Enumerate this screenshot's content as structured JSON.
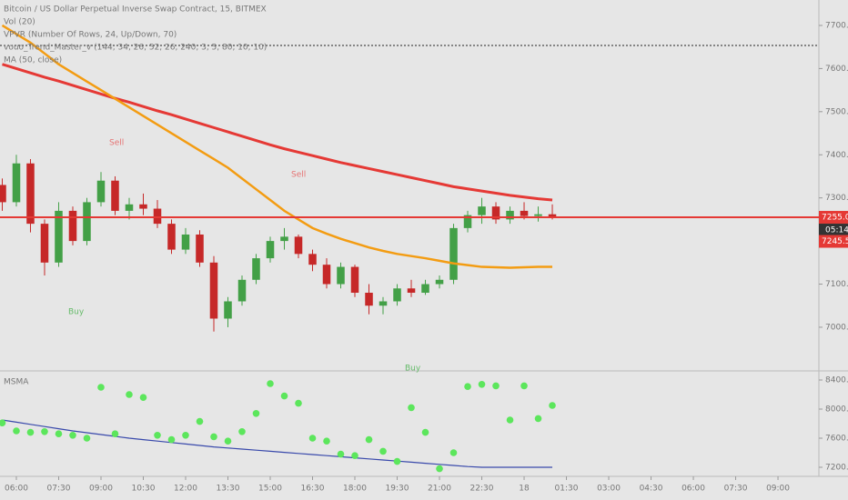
{
  "chart_data": [
    {
      "type": "candlestick",
      "title": "Bitcoin / US Dollar Perpetual Inverse Swap Contract, 15, BITMEX",
      "indicators": [
        "Vol (20)",
        "VPVR (Number Of Rows, 24, Up/Down, 70)",
        "vouo_Trend_Master_v (144, 34, 26, 52, 26, 240, 3, 5, 80, 10, 10)",
        "MA (50, close)"
      ],
      "open": [
        7330,
        7290,
        7380,
        7240,
        7150,
        7270,
        7200,
        7290,
        7340,
        7270,
        7285,
        7275,
        7240,
        7180,
        7215,
        7150,
        7020,
        7060,
        7110,
        7160,
        7200,
        7210,
        7170,
        7145,
        7100,
        7140,
        7080,
        7050,
        7060,
        7090,
        7080,
        7100,
        7110,
        7230,
        7260,
        7280,
        7250,
        7270,
        7258,
        7262
      ],
      "high": [
        7345,
        7400,
        7390,
        7250,
        7290,
        7280,
        7300,
        7360,
        7350,
        7300,
        7310,
        7295,
        7250,
        7230,
        7225,
        7165,
        7070,
        7120,
        7170,
        7210,
        7230,
        7215,
        7180,
        7160,
        7150,
        7145,
        7100,
        7070,
        7100,
        7110,
        7110,
        7120,
        7240,
        7270,
        7300,
        7290,
        7280,
        7290,
        7280,
        7285
      ],
      "low": [
        7270,
        7280,
        7220,
        7120,
        7140,
        7190,
        7190,
        7280,
        7260,
        7250,
        7260,
        7230,
        7170,
        7170,
        7140,
        6990,
        7000,
        7050,
        7100,
        7150,
        7180,
        7160,
        7130,
        7090,
        7090,
        7070,
        7030,
        7030,
        7050,
        7070,
        7075,
        7090,
        7100,
        7220,
        7240,
        7240,
        7240,
        7250,
        7245,
        7250
      ],
      "close": [
        7290,
        7380,
        7240,
        7150,
        7270,
        7200,
        7290,
        7340,
        7270,
        7285,
        7275,
        7240,
        7180,
        7215,
        7150,
        7020,
        7060,
        7110,
        7160,
        7200,
        7210,
        7170,
        7145,
        7100,
        7140,
        7080,
        7050,
        7060,
        7090,
        7080,
        7100,
        7110,
        7230,
        7260,
        7280,
        7250,
        7270,
        7258,
        7262,
        7255
      ],
      "up_color": "#43a047",
      "down_color": "#c62828",
      "series": [
        {
          "color": "#e53935",
          "values": [
            7610,
            7600,
            7590,
            7580,
            7571,
            7561,
            7551,
            7541,
            7531,
            7522,
            7512,
            7502,
            7493,
            7483,
            7473,
            7463,
            7453,
            7443,
            7433,
            7423,
            7414,
            7406,
            7398,
            7390,
            7382,
            7375,
            7368,
            7361,
            7354,
            7347,
            7340,
            7333,
            7326,
            7321,
            7316,
            7311,
            7306,
            7302,
            7298,
            7295
          ]
        },
        {
          "name": "MA (50, close)",
          "color": "#f39c12",
          "values": [
            7700,
            7680,
            7660,
            7635,
            7610,
            7590,
            7570,
            7550,
            7530,
            7510,
            7490,
            7470,
            7450,
            7430,
            7410,
            7390,
            7370,
            7345,
            7320,
            7295,
            7270,
            7250,
            7230,
            7217,
            7205,
            7195,
            7185,
            7177,
            7170,
            7165,
            7160,
            7154,
            7148,
            7144,
            7140,
            7139,
            7138,
            7139,
            7140,
            7140
          ]
        }
      ],
      "annotations": [
        {
          "text": "Sell",
          "color": "#e57373"
        },
        {
          "text": "Sell",
          "color": "#e57373"
        },
        {
          "text": "Buy",
          "color": "#66bb6a"
        },
        {
          "text": "Buy",
          "color": "#66bb6a"
        }
      ],
      "last_price": {
        "value": 7255,
        "label": "7255.0"
      },
      "countdown": "05:14",
      "mark_price": {
        "value": 7245.5,
        "label": "7245.5"
      },
      "ylim": [
        6905,
        7759
      ],
      "yticks": [
        {
          "value": 7700,
          "label": "7700.0"
        },
        {
          "value": 7600,
          "label": "7600.0"
        },
        {
          "value": 7500,
          "label": "7500.0"
        },
        {
          "value": 7400,
          "label": "7400.0"
        },
        {
          "value": 7300,
          "label": "7300.0"
        },
        {
          "value": 7100,
          "label": "7100.0"
        },
        {
          "value": 7000,
          "label": "7000.0"
        }
      ],
      "xlim": [
        -0.16,
        57.9
      ],
      "xticks": [
        {
          "value": 1,
          "label": "06:00"
        },
        {
          "value": 4,
          "label": "07:30"
        },
        {
          "value": 7,
          "label": "09:00"
        },
        {
          "value": 10,
          "label": "10:30"
        },
        {
          "value": 13,
          "label": "12:00"
        },
        {
          "value": 16,
          "label": "13:30"
        },
        {
          "value": 19,
          "label": "15:00"
        },
        {
          "value": 22,
          "label": "16:30"
        },
        {
          "value": 25,
          "label": "18:00"
        },
        {
          "value": 28,
          "label": "19:30"
        },
        {
          "value": 31,
          "label": "21:00"
        },
        {
          "value": 34,
          "label": "22:30"
        },
        {
          "value": 37,
          "label": "18"
        },
        {
          "value": 40,
          "label": "01:30"
        },
        {
          "value": 43,
          "label": "03:00"
        },
        {
          "value": 46,
          "label": "04:30"
        },
        {
          "value": 49,
          "label": "06:00"
        },
        {
          "value": 52,
          "label": "07:30"
        },
        {
          "value": 55,
          "label": "09:00"
        }
      ]
    },
    {
      "type": "dots",
      "title": "MSMA",
      "color": "#5ce65c",
      "values": [
        7810,
        7700,
        7680,
        7690,
        7660,
        7640,
        7600,
        8300,
        7660,
        8200,
        8160,
        7640,
        7580,
        7640,
        7830,
        7620,
        7560,
        7690,
        7940,
        8350,
        8180,
        8080,
        7600,
        7560,
        7380,
        7360,
        7580,
        7420,
        7280,
        8020,
        7680,
        7180,
        7400,
        8310,
        8340,
        8320,
        7850,
        8320,
        7870,
        8050
      ],
      "series": [
        {
          "color": "#3949ab",
          "values": [
            7850,
            7820,
            7790,
            7760,
            7730,
            7700,
            7675,
            7650,
            7625,
            7600,
            7580,
            7560,
            7540,
            7520,
            7500,
            7480,
            7465,
            7450,
            7435,
            7420,
            7405,
            7390,
            7375,
            7360,
            7345,
            7330,
            7315,
            7300,
            7285,
            7270,
            7255,
            7240,
            7225,
            7210,
            7200,
            7200,
            7200,
            7200,
            7200,
            7200
          ]
        }
      ],
      "ylim": [
        7100,
        8500
      ],
      "yticks": [
        {
          "value": 8400,
          "label": "8400.0"
        },
        {
          "value": 8000,
          "label": "8000.0"
        },
        {
          "value": 7600,
          "label": "7600.0"
        },
        {
          "value": 7200,
          "label": "7200.0"
        }
      ]
    }
  ]
}
